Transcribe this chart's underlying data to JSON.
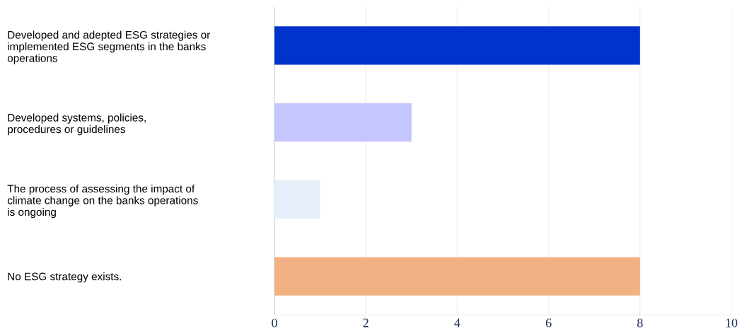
{
  "chart_data": {
    "type": "bar",
    "orientation": "horizontal",
    "categories": [
      "Developed and adepted ESG strategies or\nimplemented ESG segments in the banks\noperations",
      "Developed systems, policies,\nprocedures or guidelines",
      "The process of assessing the impact of\nclimate change on the banks operations\nis ongoing",
      "No ESG strategy exists."
    ],
    "values": [
      8,
      3,
      1,
      8
    ],
    "colors": [
      "#0033cc",
      "#c5c5ff",
      "#e6eef9",
      "#f2b183"
    ],
    "xlim": [
      0,
      10
    ],
    "xticks": [
      0,
      2,
      4,
      6,
      8,
      10
    ],
    "grid": "x"
  }
}
